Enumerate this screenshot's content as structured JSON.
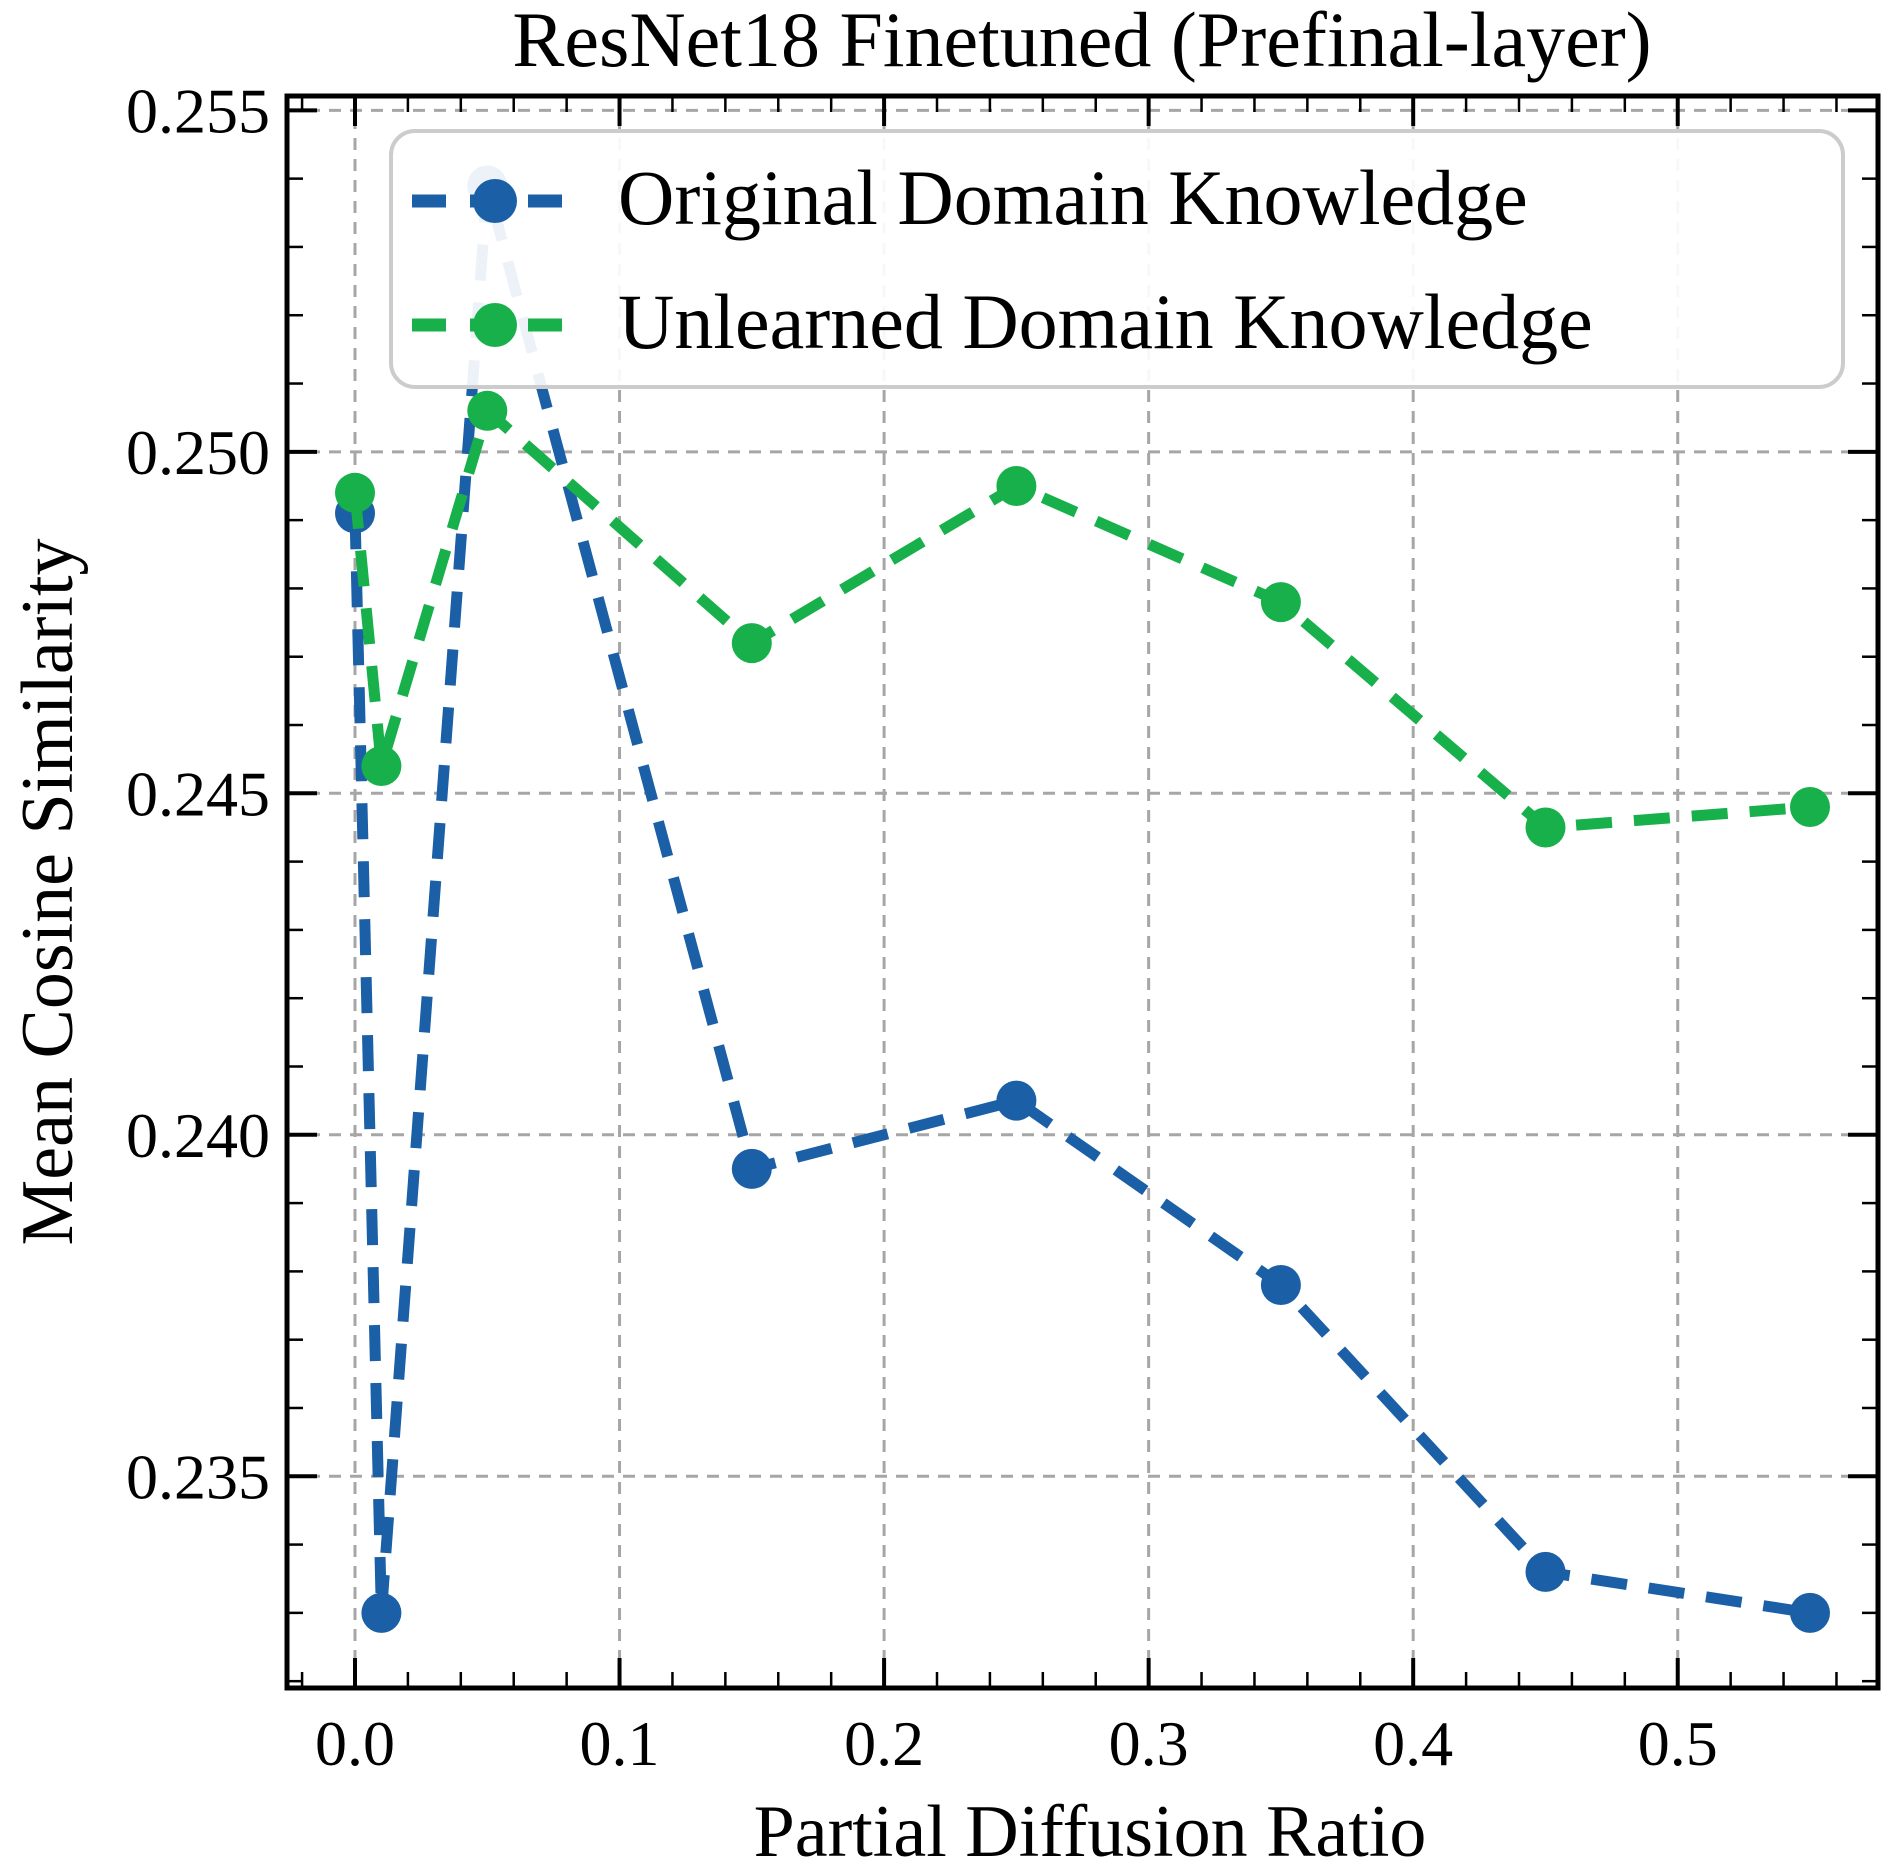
{
  "chart_data": {
    "type": "line",
    "title": "ResNet18 Finetuned (Prefinal-layer)",
    "xlabel": "Partial Diffusion Ratio",
    "ylabel": "Mean Cosine Similarity",
    "x": [
      0.0,
      0.01,
      0.05,
      0.15,
      0.25,
      0.35,
      0.45,
      0.55
    ],
    "series": [
      {
        "name": "Original Domain Knowledge",
        "color": "#1b5fa6",
        "values": [
          0.2491,
          0.233,
          0.2539,
          0.2395,
          0.2405,
          0.2378,
          0.2336,
          0.233
        ]
      },
      {
        "name": "Unlearned Domain Knowledge",
        "color": "#17b04a",
        "values": [
          0.2494,
          0.2454,
          0.2506,
          0.2472,
          0.2495,
          0.2478,
          0.2445,
          0.2448
        ]
      }
    ],
    "x_ticks": [
      0.0,
      0.1,
      0.2,
      0.3,
      0.4,
      0.5
    ],
    "x_tick_labels": [
      "0.0",
      "0.1",
      "0.2",
      "0.3",
      "0.4",
      "0.5"
    ],
    "y_ticks": [
      0.255,
      0.25,
      0.245,
      0.24,
      0.235
    ],
    "y_tick_labels": [
      "0.255",
      "0.250",
      "0.245",
      "0.240",
      "0.235"
    ],
    "x_minor_step": 0.02,
    "y_minor_step": 0.001,
    "xlim": [
      -0.0257,
      0.5757
    ],
    "ylim": [
      0.2319,
      0.25521
    ],
    "grid": true,
    "grid_color": "#a6a6a6",
    "legend_position": "upper left",
    "line_style": "dashed",
    "marker": "circle"
  }
}
